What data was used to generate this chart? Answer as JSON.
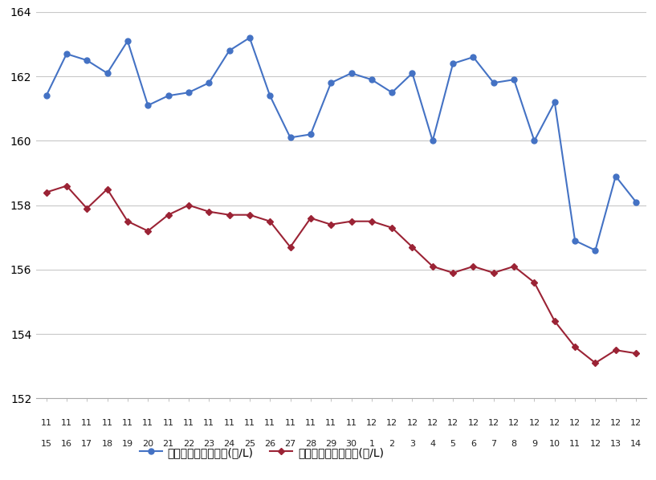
{
  "x_labels_top": [
    "11",
    "11",
    "11",
    "11",
    "11",
    "11",
    "11",
    "11",
    "11",
    "11",
    "11",
    "11",
    "11",
    "11",
    "11",
    "11",
    "12",
    "12",
    "12",
    "12",
    "12",
    "12",
    "12",
    "12",
    "12",
    "12",
    "12",
    "12",
    "12",
    "12"
  ],
  "x_labels_bot": [
    "15",
    "16",
    "17",
    "18",
    "19",
    "20",
    "21",
    "22",
    "23",
    "24",
    "25",
    "26",
    "27",
    "28",
    "29",
    "30",
    "1",
    "2",
    "3",
    "4",
    "5",
    "6",
    "7",
    "8",
    "9",
    "10",
    "11",
    "12",
    "13",
    "14"
  ],
  "blue_data": [
    161.4,
    162.7,
    162.5,
    162.1,
    163.1,
    161.1,
    161.4,
    161.5,
    161.8,
    162.8,
    163.2,
    161.4,
    160.1,
    160.2,
    161.8,
    162.1,
    161.9,
    161.5,
    162.1,
    160.0,
    162.4,
    162.6,
    161.8,
    161.9,
    160.0,
    161.2,
    156.9,
    156.6,
    158.9,
    158.1
  ],
  "red_data": [
    158.4,
    158.6,
    157.9,
    158.5,
    157.5,
    157.2,
    157.7,
    158.0,
    157.8,
    157.7,
    157.7,
    157.5,
    156.7,
    157.6,
    157.4,
    157.5,
    157.5,
    157.3,
    156.7,
    156.1,
    155.9,
    156.1,
    155.9,
    156.1,
    155.6,
    154.4,
    153.6,
    153.1,
    153.5,
    153.4
  ],
  "ylim": [
    152,
    164
  ],
  "yticks": [
    152,
    154,
    156,
    158,
    160,
    162,
    164
  ],
  "blue_color": "#4472C4",
  "red_color": "#9B2335",
  "legend_blue": "レギュラー看板価格(円/L)",
  "legend_red": "レギュラー実売価格(円/L)",
  "bg_color": "#ffffff",
  "grid_color": "#c8c8c8"
}
